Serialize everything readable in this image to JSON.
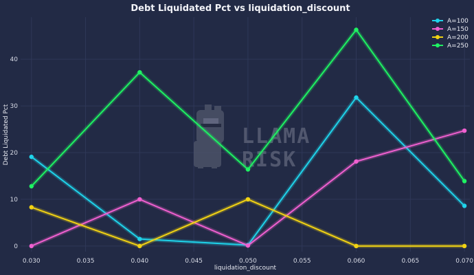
{
  "chart_data": {
    "type": "line",
    "title": "Debt Liquidated Pct vs liquidation_discount",
    "xlabel": "liquidation_discount",
    "ylabel": "Debt Liquidated Pct",
    "x": [
      0.03,
      0.04,
      0.05,
      0.06,
      0.07
    ],
    "xlim": [
      0.029,
      0.0705
    ],
    "ylim": [
      -1.2,
      49
    ],
    "xticks": [
      "0.030",
      "0.035",
      "0.040",
      "0.045",
      "0.050",
      "0.055",
      "0.060",
      "0.065",
      "0.070"
    ],
    "yticks": [
      "0",
      "10",
      "20",
      "30",
      "40"
    ],
    "grid": true,
    "legend_position": "top-right",
    "series": [
      {
        "name": "A=100",
        "color": "#1fd3ea",
        "values": [
          19.1,
          1.5,
          0.2,
          31.8,
          8.6
        ]
      },
      {
        "name": "A=150",
        "color": "#f060d0",
        "values": [
          0.0,
          10.0,
          0.1,
          18.1,
          24.7
        ]
      },
      {
        "name": "A=200",
        "color": "#f2d313",
        "values": [
          8.3,
          0.0,
          10.0,
          0.0,
          0.0
        ]
      },
      {
        "name": "A=250",
        "color": "#1ef262",
        "values": [
          12.8,
          37.2,
          16.4,
          46.3,
          13.9
        ]
      }
    ]
  },
  "watermark": {
    "line1": "LLAMA",
    "line2": "RISK"
  }
}
